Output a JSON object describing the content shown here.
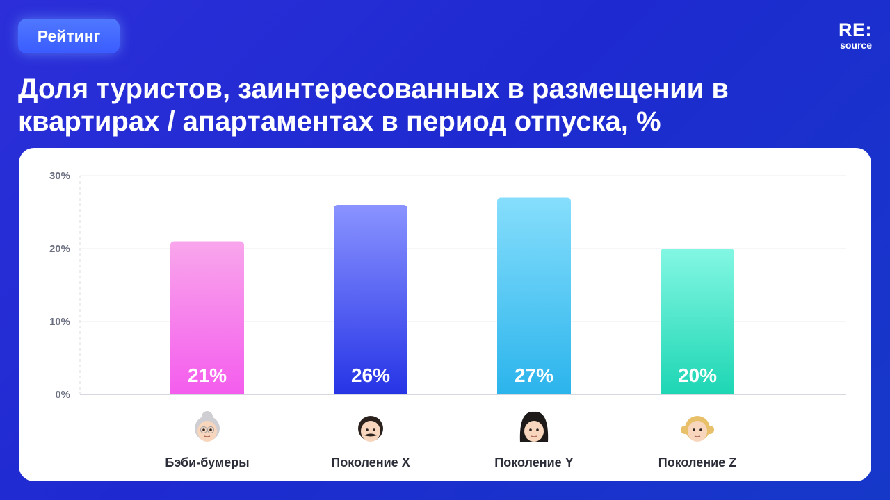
{
  "badge": {
    "label": "Рейтинг"
  },
  "logo": {
    "main": "RE:",
    "sub": "source"
  },
  "title": "Доля туристов, заинтересованных в размещении в квартирах / апартаментах в период отпуска, %",
  "chart_data": {
    "type": "bar",
    "categories": [
      "Бэби-бумеры",
      "Поколение X",
      "Поколение Y",
      "Поколение Z"
    ],
    "values": [
      21,
      26,
      27,
      20
    ],
    "value_labels": [
      "21%",
      "26%",
      "27%",
      "20%"
    ],
    "y_ticks": [
      "0%",
      "10%",
      "20%",
      "30%"
    ],
    "ylim": [
      0,
      30
    ],
    "grid": true,
    "bar_colors": [
      [
        "#f9a6ec",
        "#f45ded"
      ],
      [
        "#8a93ff",
        "#2634e6"
      ],
      [
        "#86defc",
        "#2bb4ec"
      ],
      [
        "#83f7e3",
        "#1dd6b4"
      ]
    ],
    "icons": [
      "grandmother-emoji",
      "man-with-mustache-emoji",
      "woman-emoji",
      "girl-emoji"
    ]
  }
}
